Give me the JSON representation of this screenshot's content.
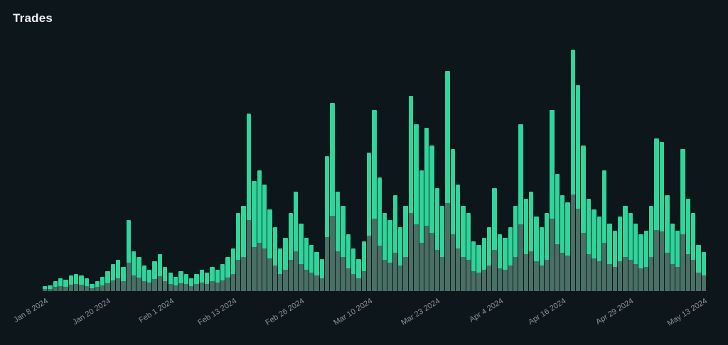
{
  "page": {
    "title": "Trades"
  },
  "chart_data": {
    "type": "bar",
    "title": "Trades",
    "subtitle": "",
    "legend": "none",
    "y_axis": "hidden",
    "grid": "off",
    "mode": "overlay",
    "bar_count": 127,
    "colors": {
      "background": "#0d161a",
      "title_text": "#eef2f4",
      "axis_label_text": "#8a979d",
      "bar_primary": "#2fd59b",
      "bar_secondary": "#4a6f64"
    },
    "x_axis": {
      "tick_labels": [
        {
          "label": "Jan 8 2024",
          "index": 0
        },
        {
          "label": "Jan 20 2024",
          "index": 12
        },
        {
          "label": "Feb 1 2024",
          "index": 24
        },
        {
          "label": "Feb 13 2024",
          "index": 36
        },
        {
          "label": "Feb 26 2024",
          "index": 49
        },
        {
          "label": "Mar 10 2024",
          "index": 62
        },
        {
          "label": "Mar 23 2024",
          "index": 75
        },
        {
          "label": "Apr 4 2024",
          "index": 87
        },
        {
          "label": "Apr 16 2024",
          "index": 99
        },
        {
          "label": "Apr 29 2024",
          "index": 112
        },
        {
          "label": "May 13 2024",
          "index": 126
        }
      ]
    },
    "series": [
      {
        "name": "primary",
        "color": "#2fd59b",
        "values": [
          4,
          8,
          14,
          18,
          16,
          22,
          24,
          22,
          18,
          10,
          14,
          20,
          28,
          38,
          44,
          34,
          100,
          56,
          48,
          36,
          30,
          42,
          52,
          34,
          26,
          20,
          28,
          24,
          18,
          24,
          30,
          26,
          34,
          30,
          38,
          48,
          60,
          110,
          120,
          250,
          155,
          170,
          150,
          115,
          90,
          60,
          75,
          110,
          140,
          95,
          75,
          65,
          55,
          45,
          190,
          265,
          140,
          120,
          80,
          60,
          45,
          70,
          195,
          255,
          160,
          110,
          100,
          135,
          90,
          120,
          275,
          235,
          170,
          230,
          205,
          145,
          120,
          310,
          200,
          150,
          120,
          110,
          70,
          65,
          75,
          90,
          145,
          80,
          75,
          90,
          120,
          235,
          130,
          140,
          105,
          90,
          110,
          255,
          165,
          135,
          125,
          340,
          290,
          205,
          130,
          115,
          105,
          170,
          95,
          85,
          105,
          120,
          110,
          95,
          80,
          85,
          120,
          215,
          210,
          135,
          95,
          85,
          200,
          130,
          110,
          65,
          55
        ]
      },
      {
        "name": "secondary",
        "color": "#4a6f64",
        "values": [
          2,
          3,
          6,
          7,
          6,
          9,
          10,
          9,
          7,
          4,
          6,
          8,
          11,
          15,
          18,
          14,
          40,
          22,
          19,
          14,
          12,
          17,
          21,
          14,
          10,
          8,
          11,
          10,
          7,
          10,
          12,
          10,
          14,
          12,
          15,
          19,
          24,
          44,
          48,
          100,
          62,
          68,
          60,
          46,
          36,
          24,
          30,
          44,
          56,
          38,
          30,
          26,
          22,
          18,
          76,
          106,
          56,
          48,
          32,
          24,
          18,
          28,
          78,
          102,
          64,
          44,
          40,
          54,
          36,
          48,
          110,
          94,
          68,
          92,
          82,
          58,
          48,
          124,
          80,
          60,
          48,
          44,
          28,
          26,
          30,
          36,
          58,
          32,
          30,
          36,
          48,
          94,
          52,
          56,
          42,
          36,
          44,
          102,
          66,
          54,
          50,
          136,
          116,
          82,
          52,
          46,
          42,
          68,
          38,
          34,
          42,
          48,
          44,
          38,
          32,
          34,
          48,
          86,
          84,
          54,
          38,
          34,
          80,
          52,
          44,
          26,
          22
        ]
      }
    ],
    "ylim": [
      0,
      340
    ]
  }
}
